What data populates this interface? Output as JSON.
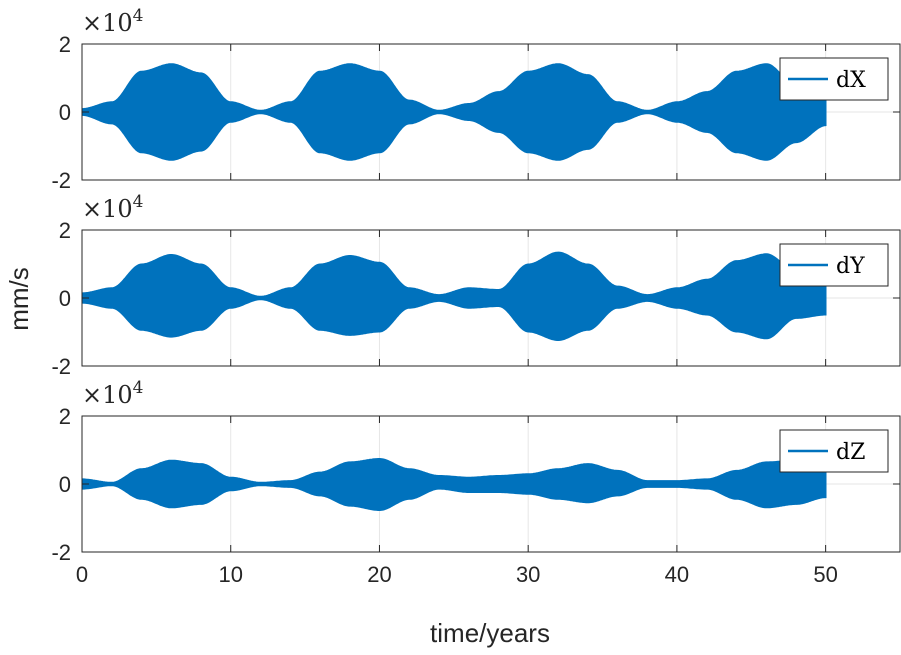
{
  "figure": {
    "ylabel": "mm/s",
    "xlabel": "time/years"
  },
  "colors": {
    "series": "#0072BD",
    "grid": "#e6e6e6",
    "axis": "#262626"
  },
  "chart_data": [
    {
      "type": "area",
      "series": [
        {
          "name": "dX",
          "envelope": "amplitude"
        }
      ],
      "exponent_label": "×10",
      "exponent_power": "4",
      "xlim": [
        0,
        55
      ],
      "ylim": [
        -2,
        2
      ],
      "xticks": [
        0,
        10,
        20,
        30,
        40,
        50
      ],
      "yticks": [
        -2,
        0,
        2
      ],
      "ytick_labels": [
        "-2",
        "0",
        "2"
      ],
      "grid": true,
      "legend_position": "top-right",
      "data_xrange": [
        0,
        50
      ],
      "envelope_t": [
        0,
        2,
        4,
        6,
        8,
        10,
        12,
        14,
        16,
        18,
        20,
        22,
        24,
        26,
        28,
        30,
        32,
        34,
        36,
        38,
        40,
        42,
        44,
        46,
        48,
        50
      ],
      "envelope_upper": [
        0.1,
        0.3,
        1.2,
        1.42,
        1.15,
        0.3,
        0.05,
        0.3,
        1.2,
        1.42,
        1.2,
        0.35,
        0.05,
        0.25,
        0.6,
        1.2,
        1.42,
        1.1,
        0.3,
        0.05,
        0.3,
        0.6,
        1.2,
        1.42,
        0.8,
        0.6
      ],
      "envelope_lower": [
        -0.1,
        -0.35,
        -1.2,
        -1.42,
        -1.15,
        -0.3,
        -0.05,
        -0.3,
        -1.2,
        -1.42,
        -1.2,
        -0.35,
        -0.05,
        -0.25,
        -0.6,
        -1.2,
        -1.42,
        -1.1,
        -0.3,
        -0.05,
        -0.3,
        -0.6,
        -1.2,
        -1.42,
        -0.9,
        -0.4
      ]
    },
    {
      "type": "area",
      "series": [
        {
          "name": "dY",
          "envelope": "amplitude"
        }
      ],
      "exponent_label": "×10",
      "exponent_power": "4",
      "xlim": [
        0,
        55
      ],
      "ylim": [
        -2,
        2
      ],
      "xticks": [
        0,
        10,
        20,
        30,
        40,
        50
      ],
      "yticks": [
        -2,
        0,
        2
      ],
      "ytick_labels": [
        "-2",
        "0",
        "2"
      ],
      "grid": true,
      "legend_position": "top-right",
      "data_xrange": [
        0,
        50
      ],
      "envelope_t": [
        0,
        2,
        4,
        6,
        8,
        10,
        12,
        14,
        16,
        18,
        20,
        22,
        24,
        26,
        28,
        30,
        32,
        34,
        36,
        38,
        40,
        42,
        44,
        46,
        48,
        50
      ],
      "envelope_upper": [
        0.15,
        0.3,
        1.0,
        1.28,
        1.0,
        0.3,
        0.05,
        0.3,
        1.0,
        1.25,
        1.05,
        0.3,
        0.1,
        0.3,
        0.25,
        1.0,
        1.35,
        1.0,
        0.35,
        0.1,
        0.3,
        0.55,
        1.1,
        1.3,
        0.8,
        0.4
      ],
      "envelope_lower": [
        -0.15,
        -0.3,
        -0.95,
        -1.15,
        -0.95,
        -0.3,
        -0.05,
        -0.3,
        -0.95,
        -1.1,
        -1.0,
        -0.3,
        -0.1,
        -0.3,
        -0.25,
        -1.0,
        -1.25,
        -0.95,
        -0.3,
        -0.1,
        -0.3,
        -0.5,
        -1.0,
        -1.2,
        -0.6,
        -0.5
      ]
    },
    {
      "type": "area",
      "series": [
        {
          "name": "dZ",
          "envelope": "amplitude"
        }
      ],
      "exponent_label": "×10",
      "exponent_power": "4",
      "xlim": [
        0,
        55
      ],
      "ylim": [
        -2,
        2
      ],
      "xticks": [
        0,
        10,
        20,
        30,
        40,
        50
      ],
      "xtick_labels": [
        "0",
        "10",
        "20",
        "30",
        "40",
        "50"
      ],
      "yticks": [
        -2,
        0,
        2
      ],
      "ytick_labels": [
        "-2",
        "0",
        "2"
      ],
      "grid": true,
      "legend_position": "top-right",
      "data_xrange": [
        0,
        50
      ],
      "envelope_t": [
        0,
        2,
        4,
        6,
        8,
        10,
        12,
        14,
        16,
        18,
        20,
        22,
        24,
        26,
        28,
        30,
        32,
        34,
        36,
        38,
        40,
        42,
        44,
        46,
        48,
        50
      ],
      "envelope_upper": [
        0.15,
        0.05,
        0.45,
        0.7,
        0.6,
        0.2,
        0.05,
        0.1,
        0.35,
        0.65,
        0.75,
        0.45,
        0.25,
        0.2,
        0.25,
        0.3,
        0.45,
        0.6,
        0.4,
        0.1,
        0.1,
        0.15,
        0.4,
        0.65,
        0.7,
        0.4
      ],
      "envelope_lower": [
        -0.15,
        -0.05,
        -0.45,
        -0.7,
        -0.6,
        -0.2,
        -0.05,
        -0.1,
        -0.35,
        -0.65,
        -0.78,
        -0.45,
        -0.15,
        -0.25,
        -0.25,
        -0.3,
        -0.45,
        -0.55,
        -0.35,
        -0.1,
        -0.1,
        -0.15,
        -0.45,
        -0.7,
        -0.6,
        -0.4
      ]
    }
  ]
}
